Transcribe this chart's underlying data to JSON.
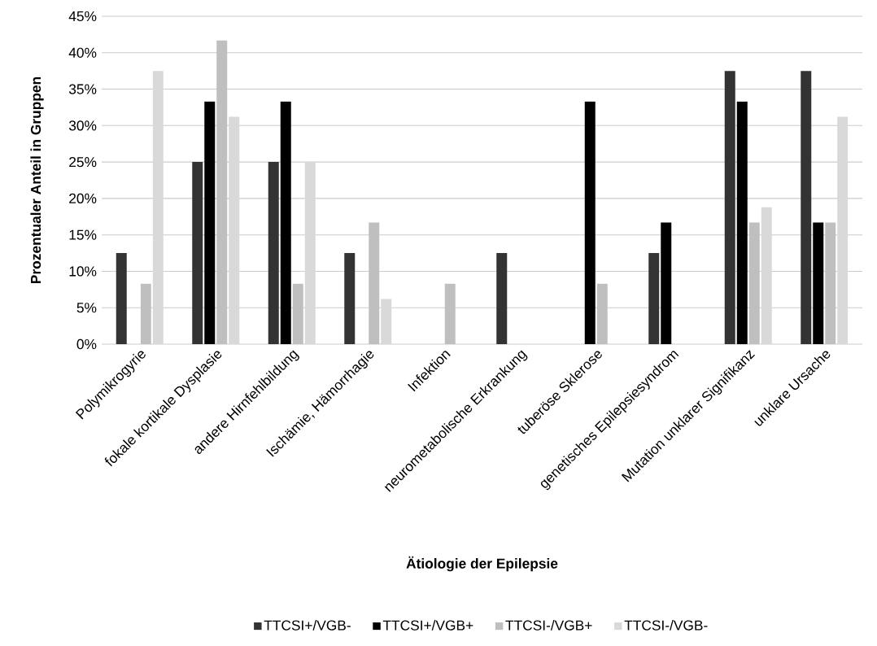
{
  "chart_data": {
    "type": "bar",
    "xlabel": "Ätiologie der Epilepsie",
    "ylabel": "Prozentualer Anteil in Gruppen",
    "categories": [
      "Polymikrogyrie",
      "fokale kortikale Dysplasie",
      "andere Hirnfehlbildung",
      "Ischämie, Hämorrhagie",
      "Infektion",
      "neurometabolische Erkrankung",
      "tuberöse Sklerose",
      "genetisches Epilepsiesyndrom",
      "Mutation unklarer Signifikanz",
      "unklare Ursache"
    ],
    "series": [
      {
        "name": "TTCSI+/VGB-",
        "color": "#333333",
        "values": [
          12.5,
          25,
          25,
          12.5,
          0,
          12.5,
          0,
          12.5,
          37.5,
          37.5
        ]
      },
      {
        "name": "TTCSI+/VGB+",
        "color": "#000000",
        "values": [
          0,
          33.3,
          33.3,
          0,
          0,
          0,
          33.3,
          16.7,
          33.3,
          16.7
        ]
      },
      {
        "name": "TTCSI-/VGB+",
        "color": "#bfbfbf",
        "values": [
          8.3,
          41.7,
          8.3,
          16.7,
          8.3,
          0,
          8.3,
          0,
          16.7,
          16.7
        ]
      },
      {
        "name": "TTCSI-/VGB-",
        "color": "#d9d9d9",
        "values": [
          37.5,
          31.2,
          25,
          6.2,
          0,
          0,
          0,
          0,
          18.8,
          31.2
        ]
      }
    ],
    "ylim": [
      0,
      45
    ],
    "yticks": [
      {
        "value": 0,
        "label": "0%"
      },
      {
        "value": 5,
        "label": "5%"
      },
      {
        "value": 10,
        "label": "10%"
      },
      {
        "value": 15,
        "label": "15%"
      },
      {
        "value": 20,
        "label": "20%"
      },
      {
        "value": 25,
        "label": "25%"
      },
      {
        "value": 30,
        "label": "30%"
      },
      {
        "value": 35,
        "label": "35%"
      },
      {
        "value": 40,
        "label": "40%"
      },
      {
        "value": 45,
        "label": "45%"
      }
    ],
    "grid": "y",
    "legend": "bottom"
  }
}
